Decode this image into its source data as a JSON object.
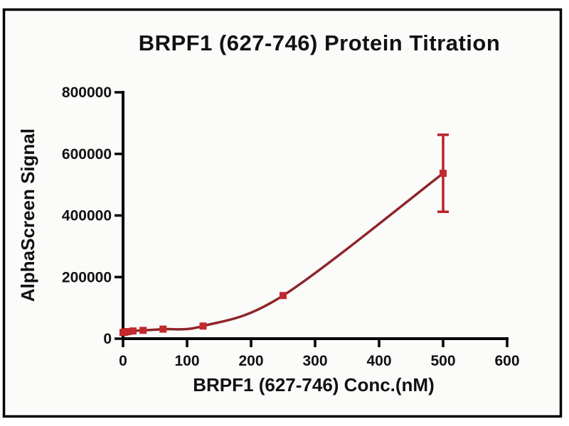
{
  "figure": {
    "background_color": "#fbfbf9",
    "frame_border_color": "#000000",
    "text_color": "#111111"
  },
  "chart_data": {
    "type": "scatter",
    "title": "BRPF1 (627-746) Protein Titration",
    "xlabel": "BRPF1 (627-746) Conc.(nM)",
    "ylabel": "AlphaScreen Signal",
    "xlim": [
      0,
      600
    ],
    "ylim": [
      0,
      800000
    ],
    "x_ticks": [
      0,
      100,
      200,
      300,
      400,
      500,
      600
    ],
    "y_ticks": [
      0,
      200000,
      400000,
      600000,
      800000
    ],
    "grid": false,
    "legend": "none",
    "series": [
      {
        "name": "BRPF1 (627-746)",
        "marker": "square",
        "marker_color": "#c3282d",
        "line_color": "#8e262b",
        "error_bar_color": "#b5242a",
        "points": [
          {
            "x": 0,
            "y": 20000
          },
          {
            "x": 1.95,
            "y": 21000
          },
          {
            "x": 3.9,
            "y": 22000
          },
          {
            "x": 7.8,
            "y": 23000
          },
          {
            "x": 15.6,
            "y": 25000
          },
          {
            "x": 31.25,
            "y": 27000
          },
          {
            "x": 62.5,
            "y": 31000
          },
          {
            "x": 125,
            "y": 41000
          },
          {
            "x": 250,
            "y": 140000
          },
          {
            "x": 500,
            "y": 537000,
            "error": 125000
          }
        ]
      }
    ]
  }
}
